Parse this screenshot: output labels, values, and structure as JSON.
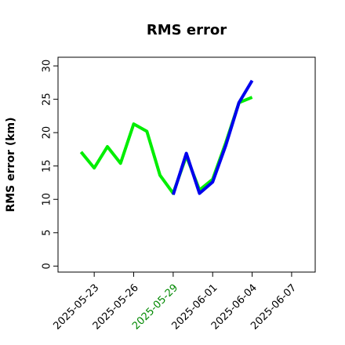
{
  "chart_data": {
    "type": "line",
    "title": "RMS error",
    "y_label": "RMS error (km)",
    "x": [
      "2025-05-22",
      "2025-05-23",
      "2025-05-24",
      "2025-05-25",
      "2025-05-26",
      "2025-05-27",
      "2025-05-28",
      "2025-05-29",
      "2025-05-30",
      "2025-05-31",
      "2025-06-01",
      "2025-06-02",
      "2025-06-03",
      "2025-06-04"
    ],
    "series": [
      {
        "name": "green",
        "color": "#00ee00",
        "values": [
          17.1,
          14.7,
          17.9,
          15.4,
          21.3,
          20.2,
          13.6,
          10.9,
          16.5,
          11.4,
          13.0,
          18.5,
          24.5,
          25.3
        ]
      },
      {
        "name": "blue",
        "color": "#0000ee",
        "values": [
          null,
          null,
          null,
          null,
          null,
          null,
          null,
          10.7,
          16.9,
          10.9,
          12.6,
          18.1,
          24.5,
          27.8
        ]
      }
    ],
    "xlim": [
      "2025-05-20T06:00",
      "2025-06-08T19:00"
    ],
    "xticks": [
      "2025-05-23",
      "2025-05-26",
      "2025-05-29",
      "2025-06-01",
      "2025-06-04",
      "2025-06-07"
    ],
    "xtick_colors": [
      "#000000",
      "#000000",
      "#008800",
      "#000000",
      "#000000",
      "#000000"
    ],
    "ylim": [
      -0.9,
      31.3
    ],
    "yticks": [
      0,
      5,
      10,
      15,
      20,
      25,
      30
    ]
  }
}
